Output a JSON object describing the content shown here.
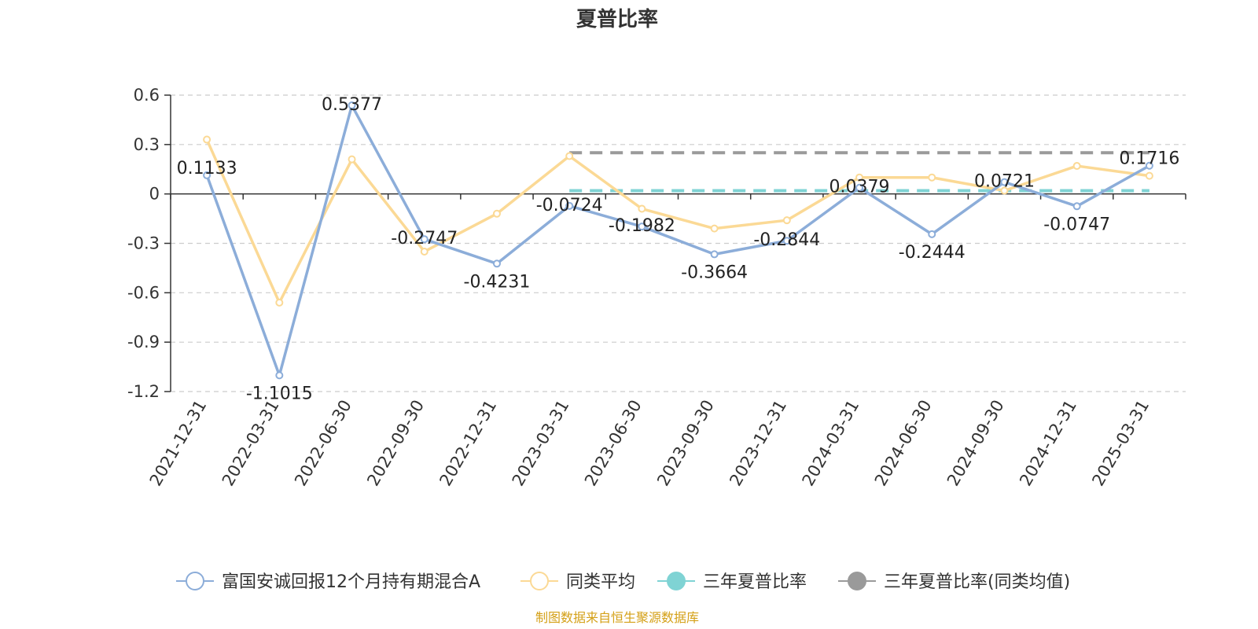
{
  "chart_data": {
    "type": "line",
    "title": "夏普比率",
    "x": [
      "2021-12-31",
      "2022-03-31",
      "2022-06-30",
      "2022-09-30",
      "2022-12-31",
      "2023-03-31",
      "2023-06-30",
      "2023-09-30",
      "2023-12-31",
      "2024-03-31",
      "2024-06-30",
      "2024-09-30",
      "2024-12-31",
      "2025-03-31"
    ],
    "ylim": [
      -1.2,
      0.6
    ],
    "yticks": [
      "0.6",
      "0.3",
      "0",
      "-0.3",
      "-0.6",
      "-0.9",
      "-1.2"
    ],
    "grid": true,
    "legend_position": "bottom",
    "series": [
      {
        "name": "富国安诚回报12个月持有期混合A",
        "color": "#8cadd9",
        "values": [
          0.1133,
          -1.1015,
          0.5377,
          -0.2747,
          -0.4231,
          -0.0724,
          -0.1982,
          -0.3664,
          -0.2844,
          0.0379,
          -0.2444,
          0.0721,
          -0.0747,
          0.1716
        ],
        "labels": [
          "0.1133",
          "-1.1015",
          "0.5377",
          "-0.2747",
          "-0.4231",
          "-0.0724",
          "-0.1982",
          "-0.3664",
          "-0.2844",
          "0.0379",
          "-0.2444",
          "0.0721",
          "-0.0747",
          "0.1716"
        ]
      },
      {
        "name": "同类平均",
        "color": "#fbd995",
        "values": [
          0.33,
          -0.66,
          0.21,
          -0.35,
          -0.12,
          0.23,
          -0.09,
          -0.21,
          -0.16,
          0.1,
          0.1,
          0.02,
          0.17,
          0.11
        ]
      },
      {
        "name": "三年夏普比率",
        "color": "#7fd3d4",
        "style": "dashed",
        "from": "2023-03-31",
        "to": "2025-03-31",
        "value": 0.02
      },
      {
        "name": "三年夏普比率(同类均值)",
        "color": "#9a9a9a",
        "style": "dashed",
        "from": "2023-03-31",
        "to": "2025-03-31",
        "value": 0.25
      }
    ],
    "legend_marker_colors": [
      "#8cadd9",
      "#fbd995",
      "#7fd3d4",
      "#9a9a9a"
    ]
  },
  "source_note": "制图数据来自恒生聚源数据库"
}
